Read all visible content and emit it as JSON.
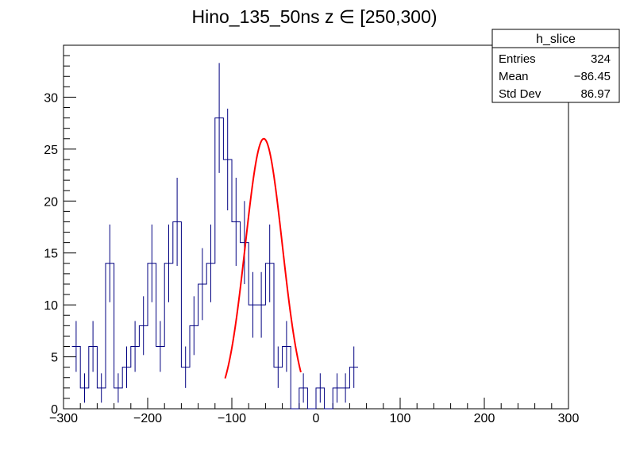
{
  "chart_data": {
    "type": "histogram",
    "title": "Hino_135_50ns z  ∈ [250,300)",
    "xlim": [
      -300,
      300
    ],
    "ylim": [
      0,
      35
    ],
    "x_ticks": [
      -300,
      -200,
      -100,
      0,
      100,
      200,
      300
    ],
    "x_tick_labels": [
      "−300",
      "−200",
      "−100",
      "0",
      "100",
      "200",
      "300"
    ],
    "y_ticks": [
      0,
      5,
      10,
      15,
      20,
      25,
      30
    ],
    "y_tick_labels": [
      "0",
      "5",
      "10",
      "15",
      "20",
      "25",
      "30"
    ],
    "bin_width": 10,
    "bins_start": -290,
    "counts": [
      6,
      2,
      6,
      2,
      14,
      2,
      4,
      6,
      8,
      14,
      6,
      14,
      18,
      4,
      8,
      12,
      14,
      28,
      24,
      18,
      16,
      10,
      10,
      14,
      4,
      6,
      0,
      2,
      0,
      2,
      0,
      2,
      2,
      4
    ],
    "histogram_color": "#000080",
    "fit": {
      "function": "gaus",
      "constant": 26.0,
      "mean": -62.0,
      "sigma": 22.0,
      "range": [
        -108,
        -18
      ],
      "color": "#ff0000"
    },
    "stats_box": {
      "name": "h_slice",
      "rows": [
        {
          "label": "Entries",
          "value": "324"
        },
        {
          "label": "Mean",
          "value": "−86.45"
        },
        {
          "label": "Std Dev",
          "value": "86.97"
        }
      ]
    }
  }
}
